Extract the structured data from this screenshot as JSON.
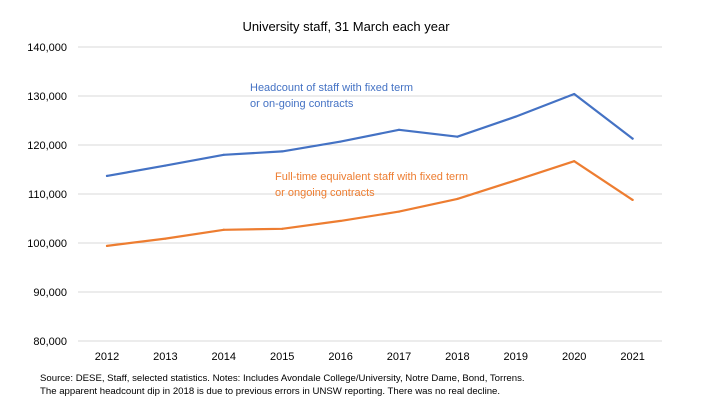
{
  "chart_data": {
    "type": "line",
    "title": "University staff, 31 March each year",
    "xlabel": "",
    "ylabel": "",
    "x": [
      "2012",
      "2013",
      "2014",
      "2015",
      "2016",
      "2017",
      "2018",
      "2019",
      "2020",
      "2021"
    ],
    "ylim": [
      80000,
      140000
    ],
    "yticks": [
      80000,
      90000,
      100000,
      110000,
      120000,
      130000,
      140000
    ],
    "ytick_labels": [
      "80,000",
      "90,000",
      "100,000",
      "110,000",
      "120,000",
      "130,000",
      "140,000"
    ],
    "grid": true,
    "legend": "none (inline annotations)",
    "series": [
      {
        "name": "Headcount of staff with fixed term or on-going contracts",
        "color": "#4472C4",
        "values": [
          113700,
          115800,
          118000,
          118700,
          120700,
          123100,
          121700,
          125800,
          130400,
          121300
        ]
      },
      {
        "name": "Full-time equivalent staff with fixed term or ongoing contracts",
        "color": "#ED7D31",
        "values": [
          99400,
          100900,
          102700,
          102900,
          104500,
          106400,
          109000,
          112800,
          116700,
          108800
        ]
      }
    ],
    "annotations": [
      {
        "series": 0,
        "lines": [
          "Headcount of staff with fixed term",
          "or on-going contracts"
        ],
        "color": "#4472C4"
      },
      {
        "series": 1,
        "lines": [
          "Full-time equivalent staff with fixed term",
          "or ongoing contracts"
        ],
        "color": "#ED7D31"
      }
    ]
  },
  "footnote": {
    "line1": "Source: DESE, Staff, selected statistics. Notes: Includes Avondale College/University, Notre Dame, Bond, Torrens.",
    "line2": "The apparent headcount dip in 2018 is due to previous errors in UNSW reporting. There was no real decline."
  }
}
